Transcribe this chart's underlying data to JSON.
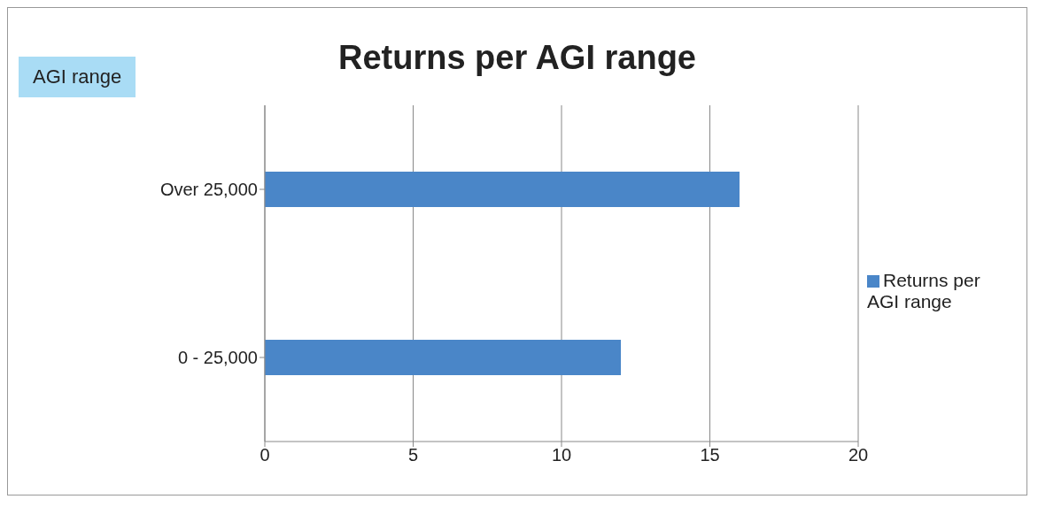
{
  "chart_data": {
    "type": "bar",
    "orientation": "horizontal",
    "title": "Returns per AGI range",
    "annotations": [
      "AGI range"
    ],
    "categories": [
      "Over 25,000",
      "0 - 25,000"
    ],
    "series": [
      {
        "name": "Returns per AGI range",
        "color": "#4a86c8",
        "values": [
          16,
          12
        ]
      }
    ],
    "xlim": [
      0,
      20
    ],
    "xticks": [
      0,
      5,
      10,
      15,
      20
    ],
    "grid": "x",
    "legend": "right"
  }
}
